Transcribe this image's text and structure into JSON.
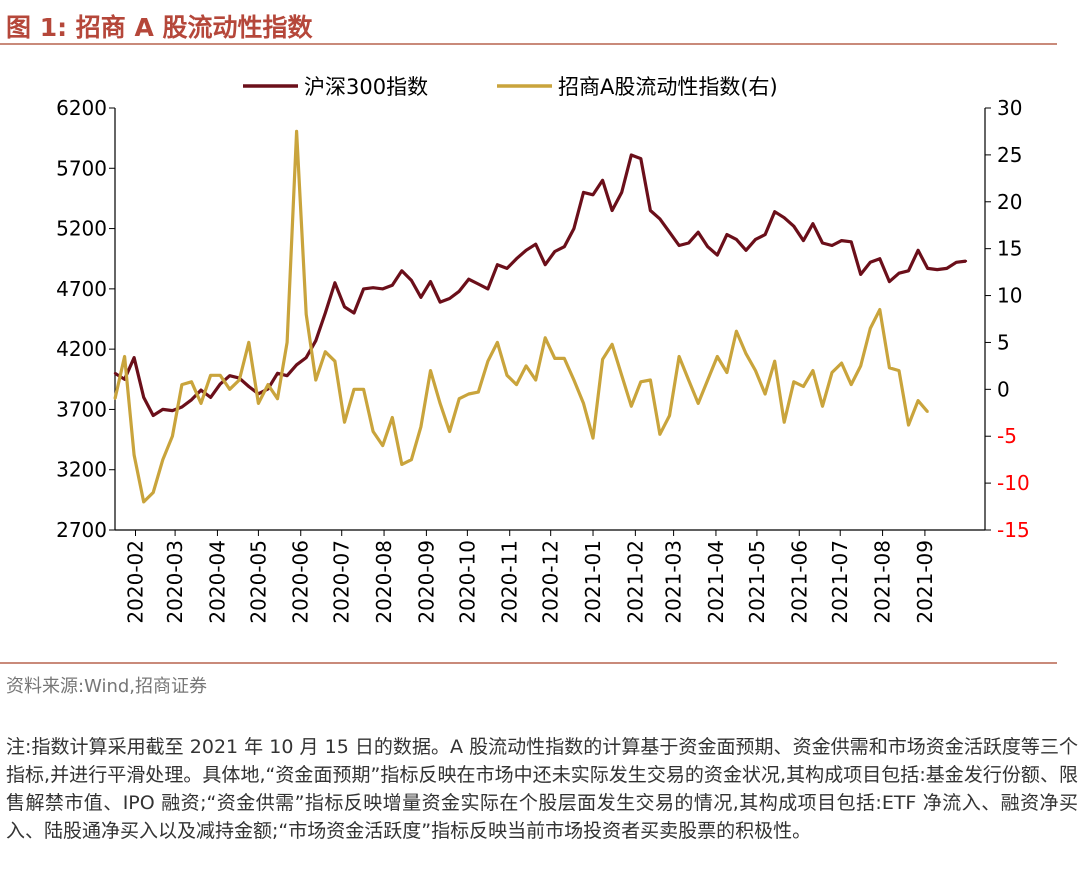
{
  "header": {
    "title": "图 1:  招商 A 股流动性指数"
  },
  "footer": {
    "source": "资料来源:Wind,招商证券",
    "note": "注:指数计算采用截至 2021 年 10 月 15 日的数据。A 股流动性指数的计算基于资金面预期、资金供需和市场资金活跃度等三个指标,并进行平滑处理。具体地,“资金面预期”指标反映在市场中还未实际发生交易的资金状况,其构成项目包括:基金发行份额、限售解禁市值、IPO 融资;“资金供需”指标反映增量资金实际在个股层面发生交易的情况,其构成项目包括:ETF 净流入、融资净买入、陆股通净买入以及减持金额;“市场资金活跃度”指标反映当前市场投资者买卖股票的积极性。"
  },
  "colors": {
    "series1": "#6b0f1a",
    "series2": "#c9a43c",
    "negative_tick": "#ff0000",
    "accent": "#b5473a"
  },
  "chart_data": {
    "type": "line",
    "legend": [
      "沪深300指数",
      "招商A股流动性指数(右)"
    ],
    "legend_position": "top",
    "x_tick_labels": [
      "2020-02",
      "2020-03",
      "2020-04",
      "2020-05",
      "2020-06",
      "2020-07",
      "2020-08",
      "2020-09",
      "2020-10",
      "2020-11",
      "2020-12",
      "2021-01",
      "2021-02",
      "2021-03",
      "2021-04",
      "2021-05",
      "2021-06",
      "2021-07",
      "2021-08",
      "2021-09"
    ],
    "y_left": {
      "min": 2700,
      "max": 6200,
      "ticks": [
        "2700",
        "3200",
        "3700",
        "4200",
        "4700",
        "5200",
        "5700",
        "6200"
      ]
    },
    "y_right": {
      "min": -15,
      "max": 30,
      "ticks": [
        "-15",
        "-10",
        "-5",
        "0",
        "5",
        "10",
        "15",
        "20",
        "25",
        "30"
      ]
    },
    "x_start": "2020-01-17",
    "x_step_days": 7,
    "series": [
      {
        "name": "沪深300指数",
        "axis": "left",
        "values": [
          4000,
          3950,
          4130,
          3800,
          3650,
          3700,
          3690,
          3720,
          3780,
          3860,
          3800,
          3910,
          3980,
          3960,
          3890,
          3830,
          3870,
          4000,
          3980,
          4070,
          4130,
          4270,
          4500,
          4750,
          4550,
          4500,
          4700,
          4710,
          4700,
          4730,
          4850,
          4770,
          4630,
          4760,
          4590,
          4620,
          4680,
          4780,
          4740,
          4700,
          4900,
          4870,
          4950,
          5020,
          5070,
          4900,
          5010,
          5050,
          5200,
          5500,
          5480,
          5600,
          5350,
          5500,
          5810,
          5780,
          5350,
          5280,
          5170,
          5060,
          5080,
          5170,
          5050,
          4980,
          5150,
          5110,
          5020,
          5110,
          5150,
          5340,
          5290,
          5220,
          5100,
          5240,
          5080,
          5060,
          5100,
          5090,
          4820,
          4920,
          4950,
          4760,
          4830,
          4850,
          5020,
          4870,
          4860,
          4870,
          4920,
          4930
        ]
      },
      {
        "name": "招商A股流动性指数(右)",
        "axis": "right",
        "values": [
          -1,
          3.5,
          -7,
          -12,
          -11,
          -7.5,
          -5,
          0.5,
          0.8,
          -1.5,
          1.5,
          1.5,
          0,
          1,
          5,
          -1.5,
          0.5,
          -1,
          5,
          27.5,
          8,
          1,
          4,
          3,
          -3.5,
          0,
          0,
          -4.5,
          -6,
          -3,
          -8,
          -7.5,
          -4,
          2,
          -1.5,
          -4.5,
          -1,
          -0.5,
          -0.3,
          3,
          5,
          1.5,
          0.5,
          2.5,
          1,
          5.5,
          3.3,
          3.3,
          1,
          -1.5,
          -5.2,
          3.2,
          4.8,
          1.5,
          -1.8,
          0.8,
          1,
          -4.8,
          -2.8,
          3.5,
          1,
          -1.5,
          1,
          3.5,
          1.8,
          6.2,
          3.8,
          2,
          -0.5,
          3,
          -3.5,
          0.8,
          0.3,
          2,
          -1.8,
          1.8,
          2.8,
          0.5,
          2.5,
          6.5,
          8.5,
          2.3,
          2,
          -3.8,
          -1.2,
          -2.4
        ]
      }
    ]
  }
}
